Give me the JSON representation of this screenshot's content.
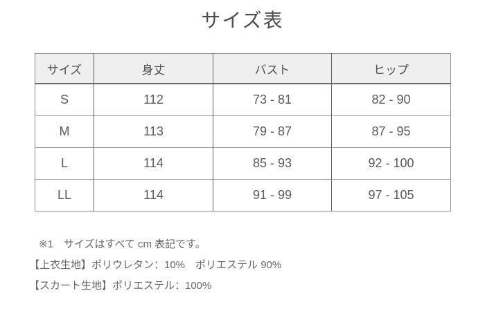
{
  "page": {
    "title": "サイズ表"
  },
  "colors": {
    "header_bg": "#efefef",
    "outer_border": "#8c8c8c",
    "column_border": "#5f5f5f",
    "row_border": "#9c9c9c",
    "title_text": "#4d4d4d",
    "body_text": "#5a5a5a",
    "note_text": "#666666"
  },
  "table": {
    "headers": [
      "サイズ",
      "身丈",
      "バスト",
      "ヒップ"
    ],
    "rows": [
      [
        "S",
        "112",
        "73 - 81",
        "82 - 90"
      ],
      [
        "M",
        "113",
        "79 - 87",
        "87 - 95"
      ],
      [
        "L",
        "114",
        "85 - 93",
        "92 - 100"
      ],
      [
        "LL",
        "114",
        "91 - 99",
        "97 - 105"
      ]
    ]
  },
  "notes": {
    "note1": "※1　サイズはすべて cm 表記です。",
    "note2": "【上衣生地】ポリウレタン：10%　ポリエステル 90%",
    "note3": "【スカート生地】ポリエステル：100%"
  }
}
